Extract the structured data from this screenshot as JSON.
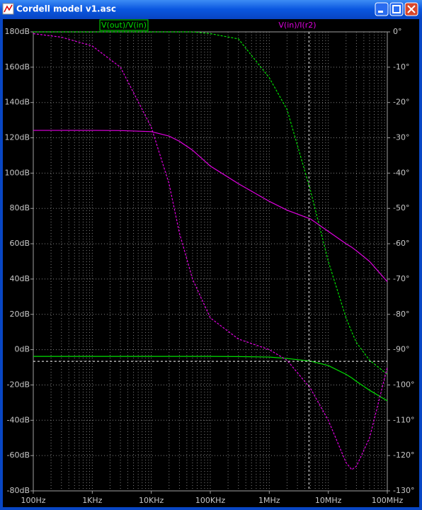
{
  "window_title": "Cordell model v1.asc",
  "chart_data": {
    "type": "line",
    "xscale": "log",
    "grid": true,
    "background": "#000000",
    "x": [
      100,
      300,
      1000,
      3000,
      10000,
      20000,
      30000,
      50000,
      100000,
      300000,
      1000000,
      2000000,
      5000000,
      10000000,
      20000000,
      25000000,
      30000000,
      50000000,
      100000000
    ],
    "xlim": [
      100,
      100000000
    ],
    "xticks": [
      {
        "value": 100,
        "label": "100Hz"
      },
      {
        "value": 1000,
        "label": "1KHz"
      },
      {
        "value": 10000,
        "label": "10KHz"
      },
      {
        "value": 100000,
        "label": "100KHz"
      },
      {
        "value": 1000000,
        "label": "1MHz"
      },
      {
        "value": 10000000,
        "label": "10MHz"
      },
      {
        "value": 100000000,
        "label": "100MHz"
      }
    ],
    "ylim": [
      -80,
      180
    ],
    "yticks": [
      {
        "value": 180,
        "label": "180dB"
      },
      {
        "value": 160,
        "label": "160dB"
      },
      {
        "value": 140,
        "label": "140dB"
      },
      {
        "value": 120,
        "label": "120dB"
      },
      {
        "value": 100,
        "label": "100dB"
      },
      {
        "value": 80,
        "label": "80dB"
      },
      {
        "value": 60,
        "label": "60dB"
      },
      {
        "value": 40,
        "label": "40dB"
      },
      {
        "value": 20,
        "label": "20dB"
      },
      {
        "value": 0,
        "label": "0dB"
      },
      {
        "value": -20,
        "label": "-20dB"
      },
      {
        "value": -40,
        "label": "-40dB"
      },
      {
        "value": -60,
        "label": "-60dB"
      },
      {
        "value": -80,
        "label": "-80dB"
      }
    ],
    "y2lim": [
      -130,
      0
    ],
    "y2ticks": [
      {
        "value": 0,
        "label": "0°"
      },
      {
        "value": -10,
        "label": "-10°"
      },
      {
        "value": -20,
        "label": "-20°"
      },
      {
        "value": -30,
        "label": "-30°"
      },
      {
        "value": -40,
        "label": "-40°"
      },
      {
        "value": -50,
        "label": "-50°"
      },
      {
        "value": -60,
        "label": "-60°"
      },
      {
        "value": -70,
        "label": "-70°"
      },
      {
        "value": -80,
        "label": "-80°"
      },
      {
        "value": -90,
        "label": "-90°"
      },
      {
        "value": -100,
        "label": "-100°"
      },
      {
        "value": -110,
        "label": "-110°"
      },
      {
        "value": -120,
        "label": "-120°"
      },
      {
        "value": -130,
        "label": "-130°"
      }
    ],
    "series": [
      {
        "name": "V(out)/V(in)",
        "color": "#00e000",
        "values": [
          -3.8,
          -3.8,
          -3.8,
          -3.8,
          -3.8,
          -3.8,
          -3.8,
          -3.8,
          -3.8,
          -3.9,
          -4.2,
          -5,
          -6.5,
          -9,
          -14,
          -16,
          -18,
          -23,
          -29
        ],
        "phase": [
          0,
          0,
          0,
          0,
          0,
          0,
          0,
          0,
          -0.5,
          -2,
          -13,
          -22,
          -45,
          -65,
          -81,
          -85,
          -88,
          -93,
          -97
        ]
      },
      {
        "name": "V(in)/I(r2)",
        "color": "#e000e0",
        "values": [
          124.2,
          124.2,
          124.2,
          124.1,
          123.5,
          121,
          118,
          113,
          104,
          94,
          84,
          79,
          74,
          67,
          60,
          58,
          56,
          50,
          38.5
        ],
        "phase": [
          -0.5,
          -1.5,
          -4,
          -10,
          -27,
          -43,
          -57,
          -70,
          -81,
          -87,
          -90,
          -93,
          -101,
          -110,
          -122,
          -124,
          -123,
          -115,
          -95
        ]
      }
    ],
    "cursor": {
      "x": 4700000,
      "y": -6.6
    }
  }
}
